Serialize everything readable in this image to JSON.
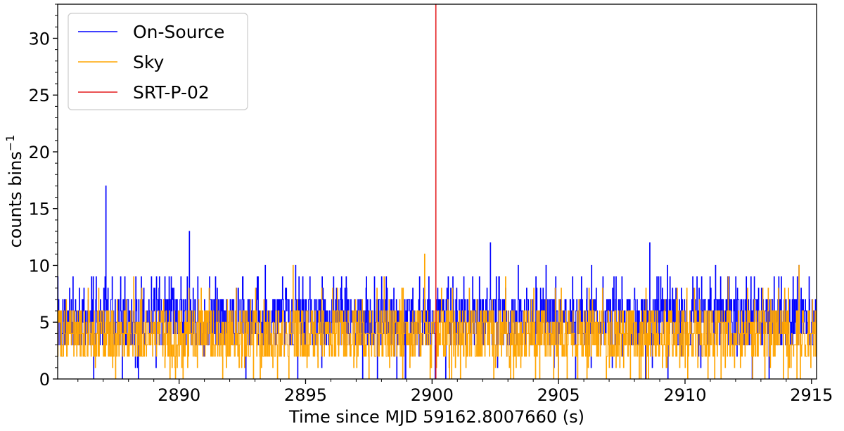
{
  "chart_data": {
    "type": "line",
    "title": "",
    "xlabel": "Time since MJD 59162.8007660 (s)",
    "ylabel": "counts bins",
    "ylabel_superscript": "−1",
    "xlim": [
      2885.2,
      2915.2
    ],
    "ylim": [
      0,
      33
    ],
    "x_ticks": [
      2890,
      2895,
      2900,
      2905,
      2910,
      2915
    ],
    "y_ticks": [
      0,
      5,
      10,
      15,
      20,
      25,
      30
    ],
    "x_minor_step": 1,
    "y_minor_step": 1,
    "grid": false,
    "legend_position": "top-left",
    "series": [
      {
        "name": "On-Source",
        "color": "#0000ff",
        "style": "step",
        "baseline": 6,
        "spikes": [
          {
            "x": 2887.1,
            "y": 17
          },
          {
            "x": 2890.4,
            "y": 13
          },
          {
            "x": 2885.8,
            "y": 9
          },
          {
            "x": 2886.6,
            "y": 9
          },
          {
            "x": 2888.9,
            "y": 9
          },
          {
            "x": 2889.6,
            "y": 9
          },
          {
            "x": 2891.2,
            "y": 9
          },
          {
            "x": 2892.5,
            "y": 9
          },
          {
            "x": 2893.4,
            "y": 10
          },
          {
            "x": 2894.6,
            "y": 10
          },
          {
            "x": 2896.1,
            "y": 9
          },
          {
            "x": 2897.4,
            "y": 9
          },
          {
            "x": 2899.5,
            "y": 9
          },
          {
            "x": 2901.6,
            "y": 9
          },
          {
            "x": 2902.3,
            "y": 12
          },
          {
            "x": 2903.4,
            "y": 10
          },
          {
            "x": 2904.5,
            "y": 10
          },
          {
            "x": 2905.9,
            "y": 9
          },
          {
            "x": 2906.3,
            "y": 10
          },
          {
            "x": 2907.5,
            "y": 9
          },
          {
            "x": 2908.6,
            "y": 12
          },
          {
            "x": 2909.3,
            "y": 10
          },
          {
            "x": 2910.3,
            "y": 9
          },
          {
            "x": 2911.2,
            "y": 10
          },
          {
            "x": 2912.6,
            "y": 9
          },
          {
            "x": 2913.7,
            "y": 9
          },
          {
            "x": 2914.5,
            "y": 10
          },
          {
            "x": 2914.9,
            "y": 9
          }
        ]
      },
      {
        "name": "Sky",
        "color": "#ffa500",
        "style": "step",
        "baseline": 5,
        "spikes": [
          {
            "x": 2899.7,
            "y": 11
          },
          {
            "x": 2888.2,
            "y": 9
          },
          {
            "x": 2894.5,
            "y": 10
          },
          {
            "x": 2898.1,
            "y": 9
          },
          {
            "x": 2902.9,
            "y": 9
          },
          {
            "x": 2911.7,
            "y": 9
          },
          {
            "x": 2914.5,
            "y": 10
          },
          {
            "x": 2886.4,
            "y": 8
          },
          {
            "x": 2906.2,
            "y": 8
          }
        ]
      },
      {
        "name": "SRT-P-02",
        "color": "#e41a1c",
        "style": "vline",
        "x": 2900.15
      }
    ]
  }
}
